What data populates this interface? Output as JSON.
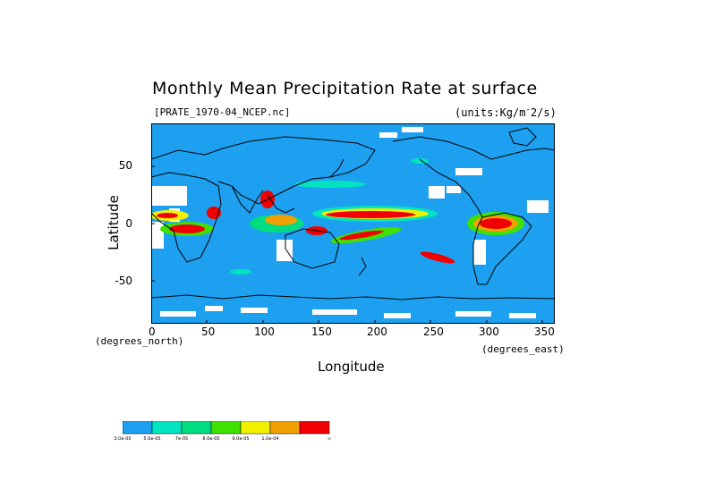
{
  "title": "Monthly Mean Precipitation Rate at surface",
  "file_label": "[PRATE_1970-04_NCEP.nc]",
  "units_label": "(units:Kg/m^-2/s)",
  "xlabel": "Longitude",
  "ylabel": "Latitude",
  "x_unit_label": "(degrees_north)",
  "y_unit_label": "(degrees_east)",
  "x_ticks": [
    "0",
    "50",
    "100",
    "150",
    "200",
    "250",
    "300",
    "350"
  ],
  "y_ticks": [
    "50",
    "0",
    "-50"
  ],
  "colors": {
    "ocean_base": "#1ea0f0",
    "cyan": "#00e4c0",
    "teal": "#00dc80",
    "green": "#40e000",
    "yellow": "#f0f000",
    "orange": "#f0a000",
    "red": "#f00000",
    "missing": "#ffffff",
    "coast": "#000000"
  },
  "legend": {
    "colors": [
      "#1ea0f0",
      "#00e4c0",
      "#00dc80",
      "#40e000",
      "#f0f000",
      "#f0a000",
      "#f00000"
    ],
    "labels": [
      "3.0e-05",
      "5.0e-05",
      "7e-05",
      "8.0e-05",
      "9.0e-05",
      "1.0e-04",
      "∞"
    ]
  }
}
